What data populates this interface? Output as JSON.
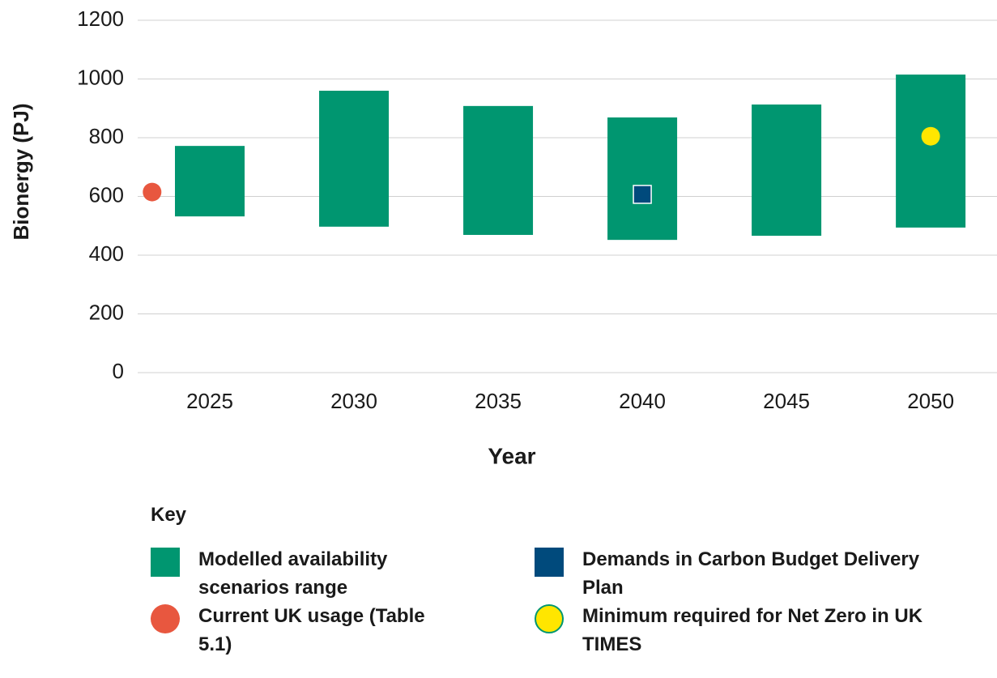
{
  "chart_data": {
    "type": "range",
    "x_label": "Year",
    "y_label": "Bionergy (PJ)",
    "xlim": [
      2022.5,
      2052.3
    ],
    "xticks": [
      2025,
      2030,
      2035,
      2040,
      2045,
      2050
    ],
    "ylim": [
      0,
      1200
    ],
    "yticks": [
      0,
      200,
      400,
      600,
      800,
      1000,
      1200
    ],
    "grid": true,
    "legend_title": "Key",
    "series": [
      {
        "name": "Modelled availability scenarios range",
        "kind": "range",
        "color": "#009670",
        "x": [
          2025,
          2030,
          2035,
          2040,
          2045,
          2050
        ],
        "low": [
          532,
          497,
          469,
          452,
          466,
          494
        ],
        "high": [
          772,
          960,
          908,
          869,
          913,
          1015
        ]
      },
      {
        "name": "Demands in Carbon Budget Delivery Plan",
        "kind": "square",
        "color": "#004a7c",
        "x": [
          2040
        ],
        "values": [
          607
        ]
      },
      {
        "name": "Current UK usage (Table 5.1)",
        "kind": "circle",
        "color": "#e8573f",
        "x": [
          2023
        ],
        "values": [
          615
        ]
      },
      {
        "name": "Minimum required for Net Zero in UK TIMES",
        "kind": "circle-outline",
        "color": "#ffe600",
        "edge": "#009670",
        "x": [
          2050
        ],
        "values": [
          805
        ]
      }
    ]
  }
}
